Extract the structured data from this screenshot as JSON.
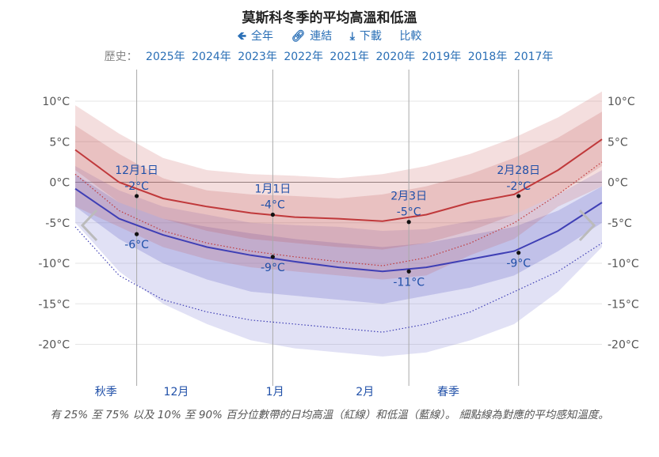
{
  "title": "莫斯科冬季的平均高溫和低溫",
  "toolbar": {
    "full_year": "全年",
    "link": "連結",
    "download": "下載",
    "compare": "比較"
  },
  "history": {
    "label": "歷史：",
    "years": [
      "2025年",
      "2024年",
      "2023年",
      "2022年",
      "2021年",
      "2020年",
      "2019年",
      "2018年",
      "2017年"
    ]
  },
  "caption": "有 25% 至 75% 以及 10% 至 90% 百分位數帶的日均高溫（紅線）和低溫（藍線）。 細點線為對應的平均感知溫度。",
  "colors": {
    "high_line": "#c0393b",
    "low_line": "#3f3fb5",
    "link": "#2a6fb6"
  },
  "chart_data": {
    "type": "line",
    "ylim": [
      -22,
      11
    ],
    "y_ticks": [
      10,
      5,
      0,
      -5,
      -10,
      -15,
      -20
    ],
    "y_tick_labels": [
      "10°C",
      "5°C",
      "0°C",
      "-5°C",
      "-10°C",
      "-15°C",
      "-20°C"
    ],
    "x_domain_days": [
      0,
      120
    ],
    "grid": true,
    "season_labels": [
      {
        "label": "秋季",
        "day": 7
      },
      {
        "label": "12月",
        "day": 23
      },
      {
        "label": "1月",
        "day": 45.5
      },
      {
        "label": "2月",
        "day": 66
      },
      {
        "label": "春季",
        "day": 85
      }
    ],
    "vlines": [
      14,
      45,
      76,
      101
    ],
    "x": [
      0,
      10,
      20,
      30,
      40,
      50,
      60,
      70,
      80,
      90,
      100,
      110,
      120
    ],
    "series": [
      {
        "name": "高溫",
        "values": [
          4,
          0,
          -2,
          -3,
          -3.8,
          -4.3,
          -4.5,
          -4.8,
          -4,
          -2.5,
          -1.5,
          1.5,
          5.3
        ]
      },
      {
        "name": "低溫",
        "values": [
          -0.8,
          -4.5,
          -6.5,
          -8,
          -9,
          -9.8,
          -10.5,
          -11,
          -10.5,
          -9.5,
          -8.5,
          -6,
          -2.5
        ]
      }
    ],
    "bands": [
      {
        "kind": "high_p10_p90",
        "lower": [
          -3,
          -5.5,
          -8,
          -9.5,
          -10.5,
          -11,
          -11.5,
          -12,
          -11.5,
          -9,
          -7,
          -3,
          -0.5
        ],
        "upper": [
          9.5,
          6,
          3,
          1.5,
          1,
          0.8,
          0.5,
          1,
          2,
          3.5,
          5.5,
          8,
          11.2
        ]
      },
      {
        "kind": "high_p25_p75",
        "lower": [
          1.5,
          -2.5,
          -4.5,
          -6,
          -7,
          -7.5,
          -8,
          -8.3,
          -7.5,
          -6,
          -4,
          -1.5,
          2
        ]
      },
      {
        "kind": "low_p10_p90",
        "lower": [
          -5,
          -11,
          -15,
          -17.5,
          -19.5,
          -20.5,
          -21,
          -21.5,
          -21,
          -19.5,
          -17.5,
          -13.5,
          -8
        ],
        "upper": [
          2,
          -1,
          -3,
          -4,
          -5,
          -5.3,
          -5.5,
          -6,
          -5.8,
          -4.8,
          -4,
          -1.5,
          1.5
        ]
      },
      {
        "kind": "low_p25_p75",
        "lower": [
          -3,
          -7,
          -10,
          -12,
          -13.5,
          -14,
          -14.5,
          -15,
          -14,
          -13,
          -11.5,
          -8.5,
          -5
        ],
        "upper": [
          1,
          -2.5,
          -4.5,
          -5.5,
          -6.3,
          -7,
          -7.5,
          -8,
          -7.5,
          -6.5,
          -5.5,
          -3.5,
          -0.5
        ]
      }
    ],
    "feels_like": [
      {
        "name": "高溫體感",
        "values": [
          1,
          -3.5,
          -6,
          -7.5,
          -8.5,
          -9.2,
          -9.8,
          -10.3,
          -9.3,
          -7.5,
          -5,
          -1.5,
          2.5
        ]
      },
      {
        "name": "低溫體感",
        "values": [
          -5.5,
          -11.5,
          -14.5,
          -16,
          -17,
          -17.5,
          -18,
          -18.5,
          -17.5,
          -16,
          -13.5,
          -11,
          -7.5
        ]
      }
    ],
    "annotations": [
      {
        "date": "12月1日",
        "high": "-2°C",
        "low": "-6°C",
        "day": 14,
        "high_y": -1.7,
        "low_y": -6.4
      },
      {
        "date": "1月1日",
        "high": "-4°C",
        "low": "-9°C",
        "day": 45,
        "high_y": -4,
        "low_y": -9.2
      },
      {
        "date": "2月3日",
        "high": "-5°C",
        "low": "-11°C",
        "day": 76,
        "high_y": -4.9,
        "low_y": -11
      },
      {
        "date": "2月28日",
        "high": "-2°C",
        "low": "-9°C",
        "day": 101,
        "high_y": -1.7,
        "low_y": -8.7
      }
    ]
  }
}
